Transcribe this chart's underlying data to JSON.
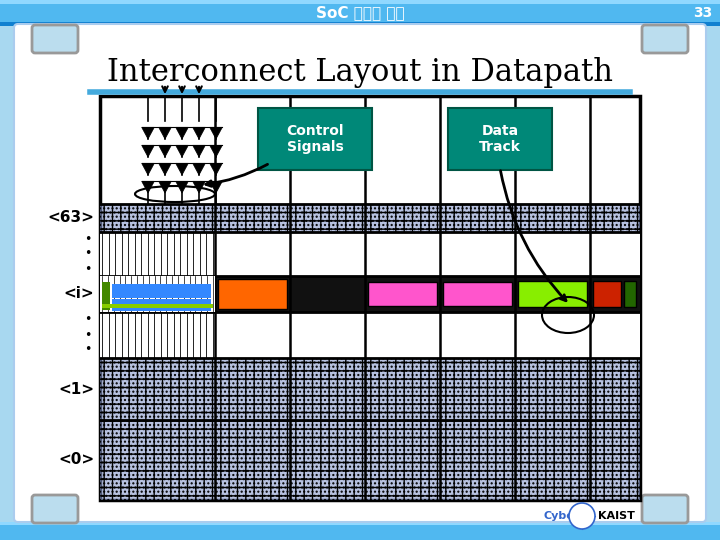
{
  "title": "Interconnect Layout in Datapath",
  "header_text": "SoC 설계와 검증",
  "page_number": "33",
  "bg_color": "#a8d8f0",
  "header_bg_top": "#60c0f0",
  "header_bg_bot": "#1090e0",
  "slide_white": "#f0f8ff",
  "teal_color": "#008878",
  "blue_strip": "#3388ff",
  "green_strip": "#448800",
  "pink_color": "#ff55cc",
  "orange_color": "#ff6600",
  "lime_color": "#88ee00",
  "red_color": "#cc2200",
  "darkgreen_color": "#226600",
  "hatched_blue": "#8899cc",
  "control_label": "Control\nSignals",
  "data_track_label": "Data\nTrack"
}
